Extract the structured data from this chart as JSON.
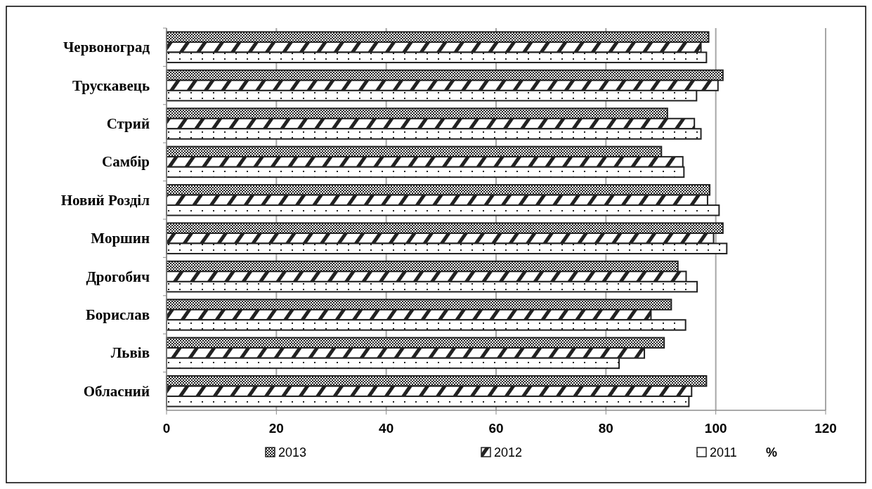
{
  "chart_data": {
    "type": "bar",
    "orientation": "horizontal",
    "xlabel": "%",
    "categories": [
      "Червоноград",
      "Трускавець",
      "Стрий",
      "Самбір",
      "Новий Розділ",
      "Моршин",
      "Дрогобич",
      "Борислав",
      "Львів",
      "Обласний"
    ],
    "series": [
      {
        "name": "2013",
        "color": "#222222",
        "values": [
          98.7,
          101.3,
          91.2,
          90.1,
          98.9,
          101.3,
          93.1,
          91.9,
          90.6,
          98.3
        ]
      },
      {
        "name": "2012",
        "color": "#222222",
        "values": [
          97.3,
          100.4,
          96.1,
          94.0,
          98.5,
          99.6,
          94.6,
          88.2,
          87.0,
          95.6
        ]
      },
      {
        "name": "2011",
        "color": "#222222",
        "values": [
          98.3,
          96.5,
          97.3,
          94.2,
          100.6,
          102.0,
          96.6,
          94.5,
          82.4,
          95.1
        ]
      }
    ],
    "xlim": [
      0,
      120
    ],
    "xticks": [
      0,
      20,
      40,
      60,
      80,
      100,
      120
    ],
    "grid": "x",
    "legend": "bottom"
  }
}
